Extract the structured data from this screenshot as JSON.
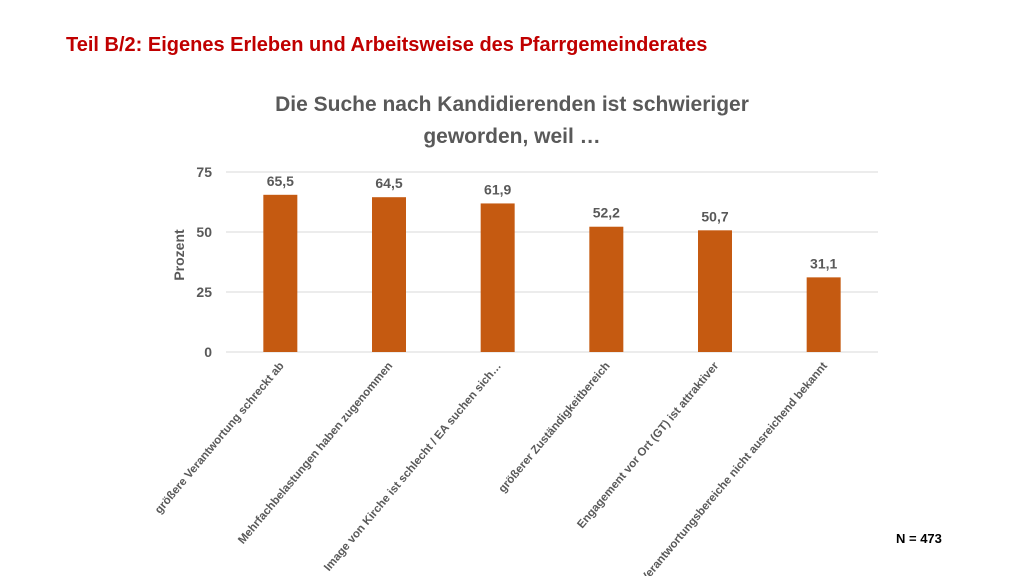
{
  "slide": {
    "title": "Teil B/2: Eigenes Erleben und Arbeitsweise des Pfarrgemeinderates",
    "footnote": "N = 473"
  },
  "colors": {
    "title": "#c00000",
    "bar": "#c55a11",
    "text": "#595959",
    "grid": "#d9d9d9"
  },
  "chart_data": {
    "type": "bar",
    "title_lines": [
      "Die Suche nach Kandidierenden ist schwieriger",
      "geworden, weil …"
    ],
    "xlabel": "",
    "ylabel": "Prozent",
    "ylim": [
      0,
      75
    ],
    "yticks": [
      0,
      25,
      50,
      75
    ],
    "grid": true,
    "categories": [
      "größere Verantwortung schreckt ab",
      "Mehrfachbelastungen haben zugenommen",
      "Image von Kirche ist schlecht / EA suchen sich…",
      "größerer Zuständigkeitbereich",
      "Engagement vor Ort (GT) ist attraktiver",
      "Verantwortungsbereiche nicht ausreichend bekannt"
    ],
    "values": [
      65.5,
      64.5,
      61.9,
      52.2,
      50.7,
      31.1
    ],
    "value_labels": [
      "65,5",
      "64,5",
      "61,9",
      "52,2",
      "50,7",
      "31,1"
    ]
  }
}
